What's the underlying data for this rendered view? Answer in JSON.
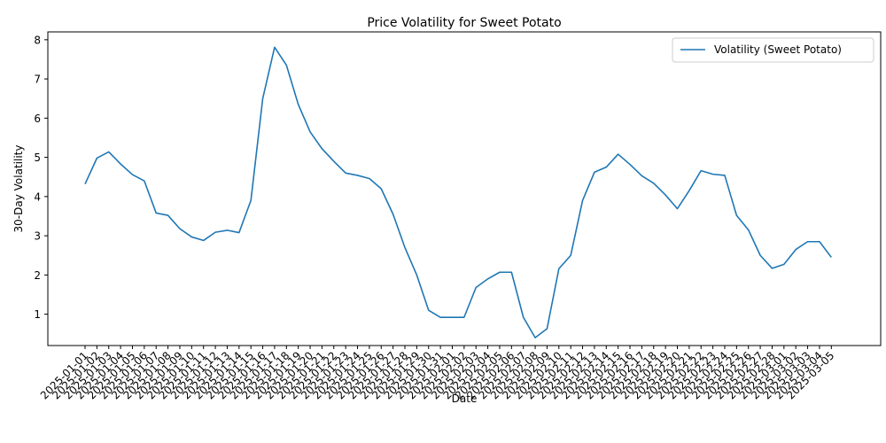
{
  "chart_data": {
    "type": "line",
    "title": "Price Volatility for Sweet Potato",
    "xlabel": "Date",
    "ylabel": "30-Day Volatility",
    "ylim": [
      0.2,
      8.2
    ],
    "yticks": [
      1,
      2,
      3,
      4,
      5,
      6,
      7,
      8
    ],
    "grid": false,
    "legend_position": "top-right",
    "x": [
      "2025-01-01",
      "2025-01-02",
      "2025-01-03",
      "2025-01-04",
      "2025-01-05",
      "2025-01-06",
      "2025-01-07",
      "2025-01-08",
      "2025-01-09",
      "2025-01-10",
      "2025-01-11",
      "2025-01-12",
      "2025-01-13",
      "2025-01-14",
      "2025-01-15",
      "2025-01-16",
      "2025-01-17",
      "2025-01-18",
      "2025-01-19",
      "2025-01-20",
      "2025-01-21",
      "2025-01-22",
      "2025-01-23",
      "2025-01-24",
      "2025-01-25",
      "2025-01-26",
      "2025-01-27",
      "2025-01-28",
      "2025-01-29",
      "2025-01-30",
      "2025-01-31",
      "2025-02-01",
      "2025-02-02",
      "2025-02-03",
      "2025-02-04",
      "2025-02-05",
      "2025-02-06",
      "2025-02-07",
      "2025-02-08",
      "2025-02-09",
      "2025-02-10",
      "2025-02-11",
      "2025-02-12",
      "2025-02-13",
      "2025-02-14",
      "2025-02-15",
      "2025-02-16",
      "2025-02-17",
      "2025-02-18",
      "2025-02-19",
      "2025-02-20",
      "2025-02-21",
      "2025-02-22",
      "2025-02-23",
      "2025-02-24",
      "2025-02-25",
      "2025-02-26",
      "2025-02-27",
      "2025-02-28",
      "2025-03-01",
      "2025-03-02",
      "2025-03-03",
      "2025-03-04",
      "2025-03-05"
    ],
    "series": [
      {
        "name": "Volatility (Sweet Potato)",
        "color": "#1f77b4",
        "values": [
          4.32,
          4.98,
          5.14,
          4.83,
          4.56,
          4.4,
          3.58,
          3.52,
          3.18,
          2.97,
          2.88,
          3.09,
          3.14,
          3.08,
          3.9,
          6.5,
          7.81,
          7.35,
          6.35,
          5.65,
          5.22,
          4.9,
          4.6,
          4.54,
          4.46,
          4.2,
          3.55,
          2.7,
          2.0,
          1.1,
          0.92,
          0.92,
          0.92,
          1.68,
          1.9,
          2.07,
          2.07,
          0.92,
          0.4,
          0.63,
          2.16,
          2.5,
          3.9,
          4.62,
          4.75,
          5.08,
          4.82,
          4.53,
          4.34,
          4.04,
          3.69,
          4.15,
          4.66,
          4.57,
          4.54,
          3.52,
          3.15,
          2.5,
          2.17,
          2.27,
          2.65,
          2.85,
          2.85,
          2.45
        ]
      }
    ]
  }
}
